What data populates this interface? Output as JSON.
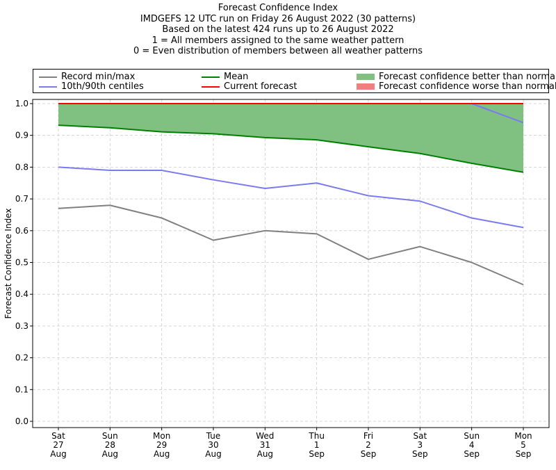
{
  "title_lines": [
    "Forecast Confidence Index",
    "IMDGEFS 12 UTC run on Friday 26 August 2022 (30 patterns)",
    "Based on the latest 424 runs up to 26 August 2022",
    "1 = All members assigned to the same weather pattern",
    "0 = Even distribution of members between all weather patterns"
  ],
  "colors": {
    "record": "#808080",
    "centiles": "#7b7bf0",
    "mean": "#008000",
    "current": "#ff0000",
    "better_fill": "#80c080",
    "worse_fill": "#f08080",
    "grid": "#cccccc"
  },
  "legend": [
    {
      "label": "Record min/max",
      "kind": "line",
      "color": "#808080"
    },
    {
      "label": "10th/90th centiles",
      "kind": "line",
      "color": "#7b7bf0"
    },
    {
      "label": "Mean",
      "kind": "line",
      "color": "#008000"
    },
    {
      "label": "Current forecast",
      "kind": "line",
      "color": "#ff0000"
    },
    {
      "label": "Forecast confidence better than normal",
      "kind": "patch",
      "color": "#80c080"
    },
    {
      "label": "Forecast confidence worse than normal",
      "kind": "patch",
      "color": "#f08080"
    }
  ],
  "chart_data": {
    "type": "line",
    "ylabel": "Forecast Confidence Index",
    "ylim": [
      0.0,
      1.0
    ],
    "yticks": [
      "0.0",
      "0.1",
      "0.2",
      "0.3",
      "0.4",
      "0.5",
      "0.6",
      "0.7",
      "0.8",
      "0.9",
      "1.0"
    ],
    "grid": true,
    "legend_position": "top",
    "x_labels": [
      [
        "Sat",
        "27",
        "Aug"
      ],
      [
        "Sun",
        "28",
        "Aug"
      ],
      [
        "Mon",
        "29",
        "Aug"
      ],
      [
        "Tue",
        "30",
        "Aug"
      ],
      [
        "Wed",
        "31",
        "Aug"
      ],
      [
        "Thu",
        "1",
        "Sep"
      ],
      [
        "Fri",
        "2",
        "Sep"
      ],
      [
        "Sat",
        "3",
        "Sep"
      ],
      [
        "Sun",
        "4",
        "Sep"
      ],
      [
        "Mon",
        "5",
        "Sep"
      ]
    ],
    "series": [
      {
        "name": "Record min/max",
        "color": "#808080",
        "values": [
          0.67,
          0.68,
          0.64,
          0.57,
          0.6,
          0.59,
          0.51,
          0.55,
          0.5,
          0.43
        ]
      },
      {
        "name": "10th/90th centiles",
        "color": "#7b7bf0",
        "values": [
          0.8,
          0.79,
          0.79,
          0.76,
          0.733,
          0.75,
          0.71,
          0.693,
          0.64,
          0.61
        ]
      },
      {
        "name": "10th/90th centiles",
        "color": "#7b7bf0",
        "values": [
          1.0,
          1.0,
          1.0,
          1.0,
          1.0,
          1.0,
          1.0,
          1.0,
          1.0,
          0.94
        ]
      },
      {
        "name": "Record min/max",
        "color": "#808080",
        "values": [
          1.0,
          1.0,
          1.0,
          1.0,
          1.0,
          1.0,
          1.0,
          1.0,
          1.0,
          1.0
        ]
      },
      {
        "name": "Mean",
        "color": "#008000",
        "values": [
          0.932,
          0.924,
          0.911,
          0.905,
          0.893,
          0.886,
          0.864,
          0.843,
          0.812,
          0.784
        ]
      },
      {
        "name": "Current forecast",
        "color": "#ff0000",
        "values": [
          1.0,
          1.0,
          1.0,
          1.0,
          1.0,
          1.0,
          1.0,
          1.0,
          1.0,
          1.0
        ]
      }
    ]
  }
}
